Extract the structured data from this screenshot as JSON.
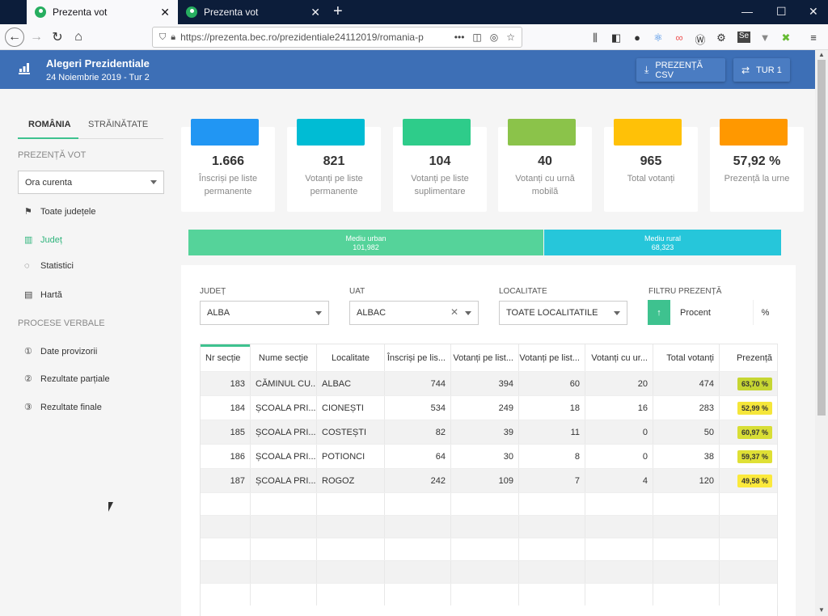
{
  "browser": {
    "tabs": [
      {
        "label": "Prezenta vot",
        "close": "✕"
      },
      {
        "label": "Prezenta vot",
        "close": "✕"
      }
    ],
    "new_tab": "+",
    "window_controls": {
      "minimize": "—",
      "maximize": "☐",
      "close": "✕"
    },
    "url": "https://prezenta.bec.ro/prezidentiale24112019/romania-p",
    "url_more": "•••"
  },
  "header": {
    "title": "Alegeri Prezidentiale",
    "subtitle": "24 Noiembrie 2019 - Tur 2",
    "csv_button": "PREZENȚĂ CSV",
    "tur_button": "TUR 1",
    "bg_color": "#3d6fb6"
  },
  "sidebar": {
    "tab_romania": "ROMÂNIA",
    "tab_strainatate": "STRĂINĂTATE",
    "section_prezenta": "PREZENȚĂ VOT",
    "ora_select": "Ora curenta",
    "items_prezenta": [
      {
        "label": "Toate județele",
        "icon": "flag-icon"
      },
      {
        "label": "Județ",
        "icon": "bar-chart-icon"
      },
      {
        "label": "Statistici",
        "icon": "donut-chart-icon"
      },
      {
        "label": "Hartă",
        "icon": "map-icon"
      }
    ],
    "section_procese": "PROCESE VERBALE",
    "items_procese": [
      {
        "label": "Date provizorii",
        "icon": "doc-1-icon"
      },
      {
        "label": "Rezultate parțiale",
        "icon": "doc-2-icon"
      },
      {
        "label": "Rezultate finale",
        "icon": "doc-3-icon"
      }
    ],
    "accent_color": "#2fb47c"
  },
  "stats": [
    {
      "value": "1.666",
      "label": "Înscriși pe liste permanente",
      "color": "#2196f3"
    },
    {
      "value": "821",
      "label": "Votanți pe liste permanente",
      "color": "#00bcd4"
    },
    {
      "value": "104",
      "label": "Votanți pe liste suplimentare",
      "color": "#2ecc8a"
    },
    {
      "value": "40",
      "label": "Votanți cu urnă mobilă",
      "color": "#8bc34a"
    },
    {
      "value": "965",
      "label": "Total votanți",
      "color": "#ffc107"
    },
    {
      "value": "57,92 %",
      "label": "Prezență la urne",
      "color": "#ff9800"
    }
  ],
  "environment": {
    "urban": {
      "label": "Mediu urban",
      "value": "101,982",
      "share": 0.599,
      "color": "#55d39a"
    },
    "rural": {
      "label": "Mediu rural",
      "value": "68,323",
      "share": 0.401,
      "color": "#26c6da"
    }
  },
  "filters": {
    "judet_label": "JUDEȚ",
    "judet_value": "ALBA",
    "uat_label": "UAT",
    "uat_value": "ALBAC",
    "localitate_label": "LOCALITATE",
    "localitate_value": "TOATE LOCALITATILE",
    "filtru_label": "FILTRU PREZENȚĂ",
    "filtru_sort": "↑",
    "filtru_placeholder": "Procent",
    "filtru_unit": "%"
  },
  "table": {
    "headers": [
      "Nr secție",
      "Nume secție",
      "Localitate",
      "Înscriși pe lis...",
      "Votanți pe list...",
      "Votanți pe list...",
      "Votanți cu ur...",
      "Total votanți",
      "Prezență"
    ],
    "rows": [
      {
        "nr": "183",
        "nume": "CĂMINUL CU...",
        "loc": "ALBAC",
        "inscrisi": "744",
        "vp": "394",
        "vs": "60",
        "vu": "20",
        "total": "474",
        "prezenta": "63,70 %",
        "color": "#c6d632"
      },
      {
        "nr": "184",
        "nume": "ȘCOALA PRI...",
        "loc": "CIONEȘTI",
        "inscrisi": "534",
        "vp": "249",
        "vs": "18",
        "vu": "16",
        "total": "283",
        "prezenta": "52,99 %",
        "color": "#f5e63a"
      },
      {
        "nr": "185",
        "nume": "ȘCOALA PRI...",
        "loc": "COSTEȘTI",
        "inscrisi": "82",
        "vp": "39",
        "vs": "11",
        "vu": "0",
        "total": "50",
        "prezenta": "60,97 %",
        "color": "#d8de35"
      },
      {
        "nr": "186",
        "nume": "ȘCOALA PRI...",
        "loc": "POTIONCI",
        "inscrisi": "64",
        "vp": "30",
        "vs": "8",
        "vu": "0",
        "total": "38",
        "prezenta": "59,37 %",
        "color": "#dfe035"
      },
      {
        "nr": "187",
        "nume": "ȘCOALA PRI...",
        "loc": "ROGOZ",
        "inscrisi": "242",
        "vp": "109",
        "vs": "7",
        "vu": "4",
        "total": "120",
        "prezenta": "49,58 %",
        "color": "#fbe93c"
      }
    ],
    "accent_color": "#3ec28f"
  }
}
